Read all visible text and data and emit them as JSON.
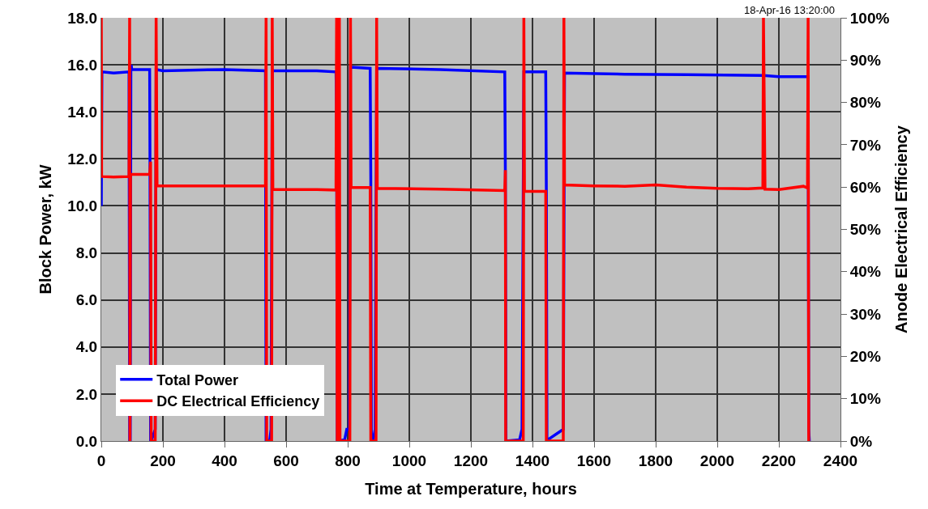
{
  "chart_data": {
    "type": "line",
    "xlabel": "Time at Temperature, hours",
    "ylabel": "Block Power, kW",
    "y2label": "Anode Electrical Efficiency",
    "annotations": [
      "18-Apr-16 13:20:00"
    ],
    "xlim": [
      0,
      2400
    ],
    "xticks": [
      0,
      200,
      400,
      600,
      800,
      1000,
      1200,
      1400,
      1600,
      1800,
      2000,
      2200,
      2400
    ],
    "ylim": [
      0,
      18
    ],
    "yticks": [
      {
        "value": 0,
        "label": "0.0"
      },
      {
        "value": 2,
        "label": "2.0"
      },
      {
        "value": 4,
        "label": "4.0"
      },
      {
        "value": 6,
        "label": "6.0"
      },
      {
        "value": 8,
        "label": "8.0"
      },
      {
        "value": 10,
        "label": "10.0"
      },
      {
        "value": 12,
        "label": "12.0"
      },
      {
        "value": 14,
        "label": "14.0"
      },
      {
        "value": 16,
        "label": "16.0"
      },
      {
        "value": 18,
        "label": "18.0"
      }
    ],
    "y2lim": [
      0,
      100
    ],
    "y2ticks": [
      {
        "value": 0,
        "label": "0%"
      },
      {
        "value": 10,
        "label": "10%"
      },
      {
        "value": 20,
        "label": "20%"
      },
      {
        "value": 30,
        "label": "30%"
      },
      {
        "value": 40,
        "label": "40%"
      },
      {
        "value": 50,
        "label": "50%"
      },
      {
        "value": 60,
        "label": "60%"
      },
      {
        "value": 70,
        "label": "70%"
      },
      {
        "value": 80,
        "label": "80%"
      },
      {
        "value": 90,
        "label": "90%"
      },
      {
        "value": 100,
        "label": "100%"
      }
    ],
    "grid": true,
    "legend": "bottom left",
    "marker": "none",
    "line_style": "solid",
    "series": [
      {
        "name": "Total Power",
        "color": "#0000ff",
        "x": [
          0,
          2,
          40,
          90,
          92,
          94,
          96,
          97,
          99,
          157,
          158,
          160,
          162,
          175,
          178,
          180,
          200,
          400,
          533,
          535,
          537,
          547,
          551,
          555,
          557,
          700,
          762,
          764,
          766,
          790,
          797,
          805,
          809,
          811,
          873,
          875,
          877,
          883,
          889,
          894,
          896,
          1100,
          1310,
          1312,
          1314,
          1358,
          1366,
          1372,
          1374,
          1443,
          1445,
          1447,
          1455,
          1500,
          1504,
          1700,
          1900,
          2150,
          2200,
          2295,
          2297,
          2299
        ],
        "values": [
          10,
          15.7,
          15.65,
          15.7,
          0,
          0,
          15.9,
          16.0,
          15.8,
          15.8,
          12,
          0,
          0,
          0.5,
          15.8,
          15.8,
          15.75,
          15.8,
          15.75,
          0,
          0,
          0.05,
          0.5,
          15.75,
          15.75,
          15.75,
          15.7,
          14.2,
          0,
          0.05,
          0.5,
          0.5,
          15.9,
          15.9,
          15.85,
          11.2,
          0,
          0.05,
          0.5,
          15.85,
          15.85,
          15.8,
          15.7,
          11.2,
          0,
          0.05,
          0.5,
          15.7,
          15.7,
          15.7,
          10.7,
          0,
          0.1,
          0.5,
          15.65,
          15.6,
          15.58,
          15.55,
          15.5,
          15.5,
          0.5,
          0
        ]
      },
      {
        "name": "DC Electrical Efficiency",
        "color": "#ff0000",
        "axis": "y2",
        "x": [
          0,
          1,
          40,
          90,
          92,
          93,
          95,
          157,
          160,
          162,
          175,
          178,
          181,
          400,
          533,
          535,
          537,
          553,
          555,
          557,
          700,
          762,
          764,
          766,
          773,
          775,
          807,
          809,
          811,
          873,
          875,
          892,
          894,
          896,
          1100,
          1310,
          1312,
          1313,
          1370,
          1372,
          1374,
          1443,
          1445,
          1500,
          1502,
          1504,
          1600,
          1700,
          1800,
          1900,
          2000,
          2100,
          2148,
          2150,
          2155,
          2200,
          2280,
          2293,
          2295,
          2297
        ],
        "values": [
          100,
          62.5,
          62.4,
          62.5,
          100,
          0,
          63,
          63,
          66,
          0,
          0,
          100,
          60.3,
          60.3,
          60.3,
          100,
          0,
          0,
          100,
          59.4,
          59.4,
          59.3,
          100,
          0,
          100,
          0,
          0,
          100,
          59.9,
          59.9,
          0,
          0,
          100,
          59.7,
          59.5,
          59.2,
          64,
          0,
          0,
          100,
          59.0,
          59.0,
          0,
          0,
          100,
          60.5,
          60.3,
          60.2,
          60.5,
          60.0,
          59.7,
          59.6,
          59.8,
          100,
          59.5,
          59.4,
          60.2,
          59.8,
          100,
          0
        ]
      }
    ]
  }
}
